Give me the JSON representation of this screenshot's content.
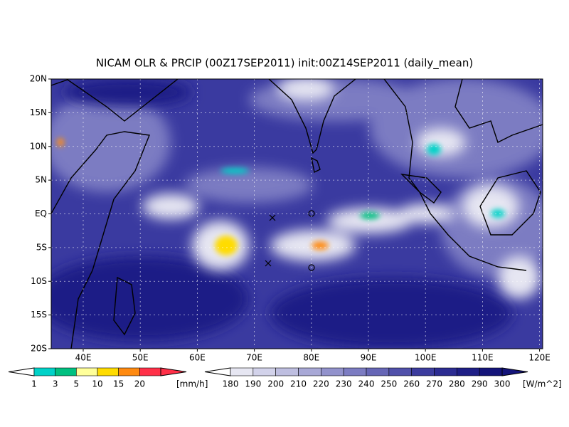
{
  "title": "NICAM OLR & PRCIP (00Z17SEP2011) init:00Z14SEP2011 (daily_mean)",
  "lat_ticks": [
    "20N",
    "15N",
    "10N",
    "5N",
    "EQ",
    "5S",
    "10S",
    "15S",
    "20S"
  ],
  "lon_ticks": [
    "40E",
    "50E",
    "60E",
    "70E",
    "80E",
    "90E",
    "100E",
    "110E",
    "120E"
  ],
  "precip_colorbar": {
    "labels": [
      "1",
      "3",
      "5",
      "10",
      "15",
      "20"
    ],
    "unit": "[mm/h]",
    "colors": [
      "#00d2c8",
      "#00c080",
      "#ffff9a",
      "#ffdc00",
      "#ff8a10",
      "#ff3048"
    ]
  },
  "olr_colorbar": {
    "labels": [
      "180",
      "190",
      "200",
      "210",
      "220",
      "230",
      "240",
      "250",
      "260",
      "270",
      "280",
      "290",
      "300"
    ],
    "unit": "[W/m^2]",
    "colors": [
      "#e6e6f2",
      "#d2d2ea",
      "#bebee0",
      "#a8a8d6",
      "#9292cc",
      "#7c7cc2",
      "#6666b6",
      "#5050aa",
      "#3c3c9e",
      "#2c2c92",
      "#1e1e86",
      "#14147a"
    ]
  }
}
